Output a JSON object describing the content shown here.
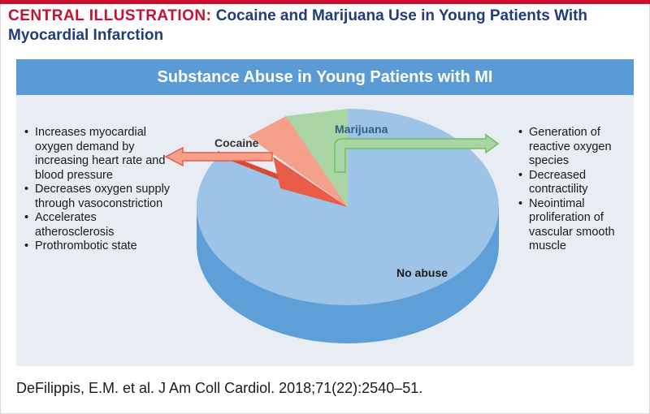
{
  "header": {
    "title_lead": "CENTRAL ILLUSTRATION:",
    "title_rest": "Cocaine and Marijuana Use in Young Patients With Myocardial Infarction"
  },
  "banner": {
    "text": "Substance Abuse in Young Patients with MI"
  },
  "colors": {
    "red": "#c8102e",
    "navy": "#1f3d7a",
    "banner": "#5b9bd5",
    "no_abuse": "#9dc3e6",
    "cocaine": "#f4a08a",
    "cocaine_dark": "#e85c48",
    "marijuana": "#a8d5a2"
  },
  "chart_data": {
    "type": "pie",
    "slices": [
      {
        "label": "No abuse",
        "value": 84
      },
      {
        "label": "Cocaine",
        "value": 4
      },
      {
        "label": "Marijuana",
        "value": 8
      }
    ]
  },
  "cocaine_effects": [
    "Increases myocardial oxygen demand by increasing heart rate and blood pressure",
    "Decreases oxygen supply through vasoconstriction",
    "Accelerates atherosclerosis",
    "Prothrombotic state"
  ],
  "marijuana_effects": [
    "Generation of reactive oxygen species",
    "Decreased contractility",
    "Neointimal proliferation of vascular smooth muscle"
  ],
  "citation": "DeFilippis, E.M. et al. J Am Coll Cardiol. 2018;71(22):2540–51."
}
